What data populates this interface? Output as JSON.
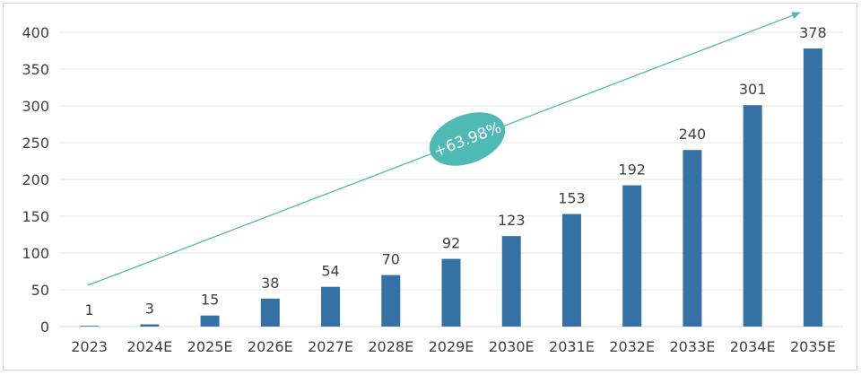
{
  "chart_data": {
    "type": "bar",
    "title": "",
    "xlabel": "",
    "ylabel": "",
    "ylim": [
      0,
      400
    ],
    "yticks": [
      0,
      50,
      100,
      150,
      200,
      250,
      300,
      350,
      400
    ],
    "categories": [
      "2023",
      "2024E",
      "2025E",
      "2026E",
      "2027E",
      "2028E",
      "2029E",
      "2030E",
      "2031E",
      "2032E",
      "2033E",
      "2034E",
      "2035E"
    ],
    "values": [
      1,
      3,
      15,
      38,
      54,
      70,
      92,
      123,
      153,
      192,
      240,
      301,
      378
    ],
    "data_labels": [
      "1",
      "3",
      "15",
      "38",
      "54",
      "70",
      "92",
      "123",
      "153",
      "192",
      "240",
      "301",
      "378"
    ],
    "annotation": {
      "text": "+63.98%",
      "kind": "CAGR trend arrow"
    },
    "colors": {
      "bar": "#3571a4",
      "arrow": "#4fb9b3",
      "badge": "#4fb9b3",
      "grid": "#e6e6e6",
      "text": "#404040"
    },
    "grid": true,
    "legend": "none"
  }
}
